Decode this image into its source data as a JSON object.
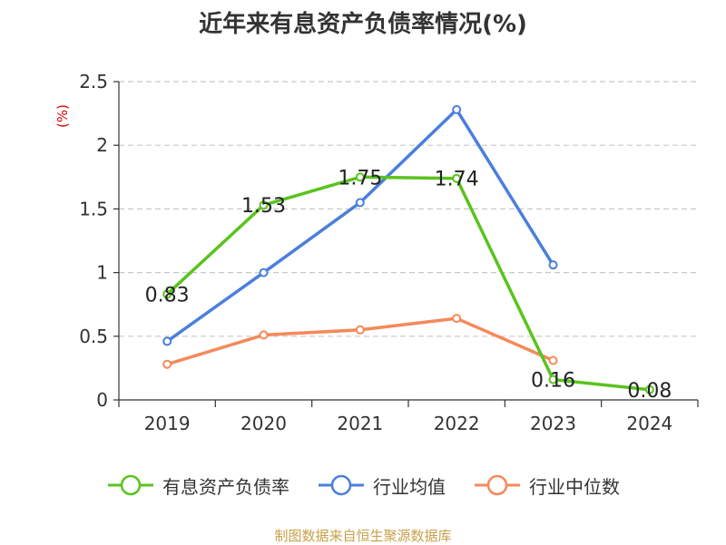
{
  "title": "近年来有息资产负债率情况(%)",
  "source_note": "制图数据来自恒生聚源数据库",
  "chart_data": {
    "type": "line",
    "title": "近年来有息资产负债率情况(%)",
    "ylabel": "(%)",
    "xlabel": "",
    "categories": [
      "2019",
      "2020",
      "2021",
      "2022",
      "2023",
      "2024"
    ],
    "ylim": [
      0,
      2.5
    ],
    "yticks": [
      0,
      0.5,
      1,
      1.5,
      2,
      2.5
    ],
    "ytick_labels": [
      "0",
      "0.5",
      "1",
      "1.5",
      "2",
      "2.5"
    ],
    "grid": "horizontal dashed",
    "legend_position": "bottom",
    "series": [
      {
        "name": "有息资产负债率",
        "color": "#5ac31e",
        "values": [
          0.83,
          1.53,
          1.75,
          1.74,
          0.16,
          0.08
        ],
        "labels": [
          "0.83",
          "1.53",
          "1.75",
          "1.74",
          "0.16",
          "0.08"
        ]
      },
      {
        "name": "行业均值",
        "color": "#4a7fdb",
        "values": [
          0.46,
          1.0,
          1.55,
          2.28,
          1.06,
          null
        ]
      },
      {
        "name": "行业中位数",
        "color": "#f5895a",
        "values": [
          0.28,
          0.51,
          0.55,
          0.64,
          0.31,
          null
        ]
      }
    ]
  }
}
